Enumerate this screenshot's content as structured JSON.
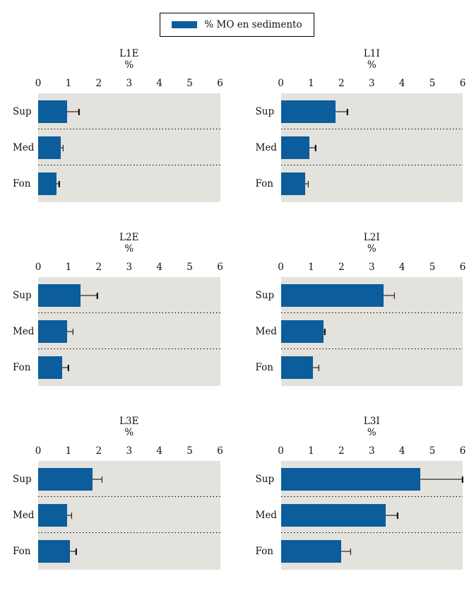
{
  "colors": {
    "bar_blue": "#0b5d9c",
    "plot_background": "#e4e2dc",
    "error_bar": "#000000",
    "text": "#111111"
  },
  "legend": {
    "label": "% MO en sedimento",
    "swatch_color": "#0b5d9c"
  },
  "chart_data": {
    "type": "bar",
    "orientation": "horizontal",
    "grid": "off",
    "legend_position": "top-center",
    "xlim": [
      0,
      6
    ],
    "xticks": [
      0,
      1,
      2,
      3,
      4,
      5,
      6
    ],
    "axis_unit": "%",
    "categories": [
      "Sup",
      "Med",
      "Fon"
    ],
    "series_name": "% MO en sedimento",
    "panels": [
      {
        "title": "L1E",
        "subtitle": "%",
        "values": [
          0.95,
          0.75,
          0.6
        ],
        "error_high": [
          1.35,
          0.82,
          0.7
        ]
      },
      {
        "title": "L1I",
        "subtitle": "%",
        "values": [
          1.8,
          0.95,
          0.8
        ],
        "error_high": [
          2.2,
          1.15,
          0.9
        ]
      },
      {
        "title": "L2E",
        "subtitle": "%",
        "values": [
          1.4,
          0.95,
          0.8
        ],
        "error_high": [
          1.95,
          1.15,
          1.0
        ]
      },
      {
        "title": "L2I",
        "subtitle": "%",
        "values": [
          3.4,
          1.4,
          1.05
        ],
        "error_high": [
          3.75,
          1.45,
          1.25
        ]
      },
      {
        "title": "L3E",
        "subtitle": "%",
        "values": [
          1.8,
          0.95,
          1.05
        ],
        "error_high": [
          2.1,
          1.1,
          1.25
        ]
      },
      {
        "title": "L3I",
        "subtitle": "%",
        "values": [
          4.6,
          3.45,
          2.0
        ],
        "error_high": [
          6.0,
          3.85,
          2.3
        ]
      }
    ]
  }
}
